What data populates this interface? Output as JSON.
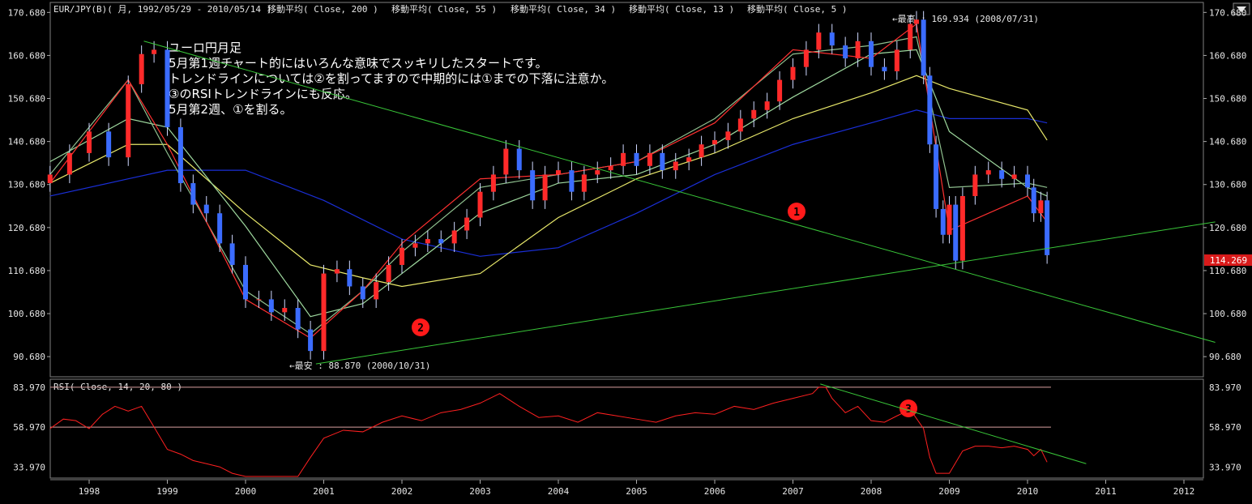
{
  "header": {
    "symbol": "EUR/JPY(B)( 月, 1992/05/29 - 2010/05/14 )",
    "ma_labels": [
      "移動平均( Close, 200 )",
      "移動平均( Close, 55 )",
      "移動平均( Close, 34 )",
      "移動平均( Close, 13 )",
      "移動平均( Close, 5 )"
    ]
  },
  "notes": [
    "ユーロ円月足",
    "5月第1週チャート的にはいろんな意味でスッキリしたスタートです。",
    "トレンドラインについては②を割ってますので中期的には①までの下落に注意か。",
    "③のRSIトレンドラインにも反応。",
    "5月第2週、①を割る。"
  ],
  "annotations": {
    "high": "←最高 : 169.934 (2008/07/31)",
    "low": "←最安 : 88.870 (2000/10/31)",
    "marker_1": "1",
    "marker_2": "2",
    "marker_3": "3",
    "current_price": "114.269"
  },
  "colors": {
    "background": "#000000",
    "up_candle": "#ff2a2a",
    "down_candle": "#3b6cff",
    "ma200": "#1a2fd8",
    "ma55": "#e8e86a",
    "ma34": "#9ed89e",
    "ma13": "#8fc08f",
    "ma5": "#ff3030",
    "trendline": "#39c739",
    "rsi": "#ff2020",
    "rsi_band": "#d9a0a0",
    "marker": "#ff1a1a",
    "price_tag": "#d81a1a"
  },
  "chart_data": [
    {
      "type": "candlestick",
      "title": "EUR/JPY(B)( 月, 1992/05/29 - 2010/05/14 )",
      "x_axis": [
        "1998",
        "1999",
        "2000",
        "2001",
        "2002",
        "2003",
        "2004",
        "2005",
        "2006",
        "2007",
        "2008",
        "2009",
        "2010",
        "2011",
        "2012"
      ],
      "y_ticks": [
        90.68,
        100.68,
        110.68,
        120.68,
        130.68,
        140.68,
        150.68,
        160.68,
        170.68
      ],
      "ylim": [
        86,
        173
      ],
      "y_tick_labels": [
        "90.680",
        "100.680",
        "110.680",
        "120.680",
        "130.680",
        "140.680",
        "150.680",
        "160.680",
        "170.680"
      ],
      "series_close": [
        [
          1997.5,
          133
        ],
        [
          1997.75,
          138
        ],
        [
          1998.0,
          143
        ],
        [
          1998.25,
          137
        ],
        [
          1998.5,
          154
        ],
        [
          1998.67,
          161
        ],
        [
          1998.83,
          162
        ],
        [
          1999.0,
          144
        ],
        [
          1999.17,
          131
        ],
        [
          1999.33,
          126
        ],
        [
          1999.5,
          124
        ],
        [
          1999.67,
          117
        ],
        [
          1999.83,
          112
        ],
        [
          2000.0,
          104
        ],
        [
          2000.17,
          104
        ],
        [
          2000.33,
          101
        ],
        [
          2000.5,
          102
        ],
        [
          2000.67,
          97
        ],
        [
          2000.83,
          92
        ],
        [
          2001.0,
          110
        ],
        [
          2001.17,
          111
        ],
        [
          2001.33,
          107
        ],
        [
          2001.5,
          104
        ],
        [
          2001.67,
          108
        ],
        [
          2001.83,
          112
        ],
        [
          2002.0,
          116
        ],
        [
          2002.17,
          117
        ],
        [
          2002.33,
          118
        ],
        [
          2002.5,
          117
        ],
        [
          2002.67,
          120
        ],
        [
          2002.83,
          123
        ],
        [
          2003.0,
          129
        ],
        [
          2003.17,
          133
        ],
        [
          2003.33,
          139
        ],
        [
          2003.5,
          134
        ],
        [
          2003.67,
          127
        ],
        [
          2003.83,
          133
        ],
        [
          2004.0,
          134
        ],
        [
          2004.17,
          129
        ],
        [
          2004.33,
          133
        ],
        [
          2004.5,
          134
        ],
        [
          2004.67,
          135
        ],
        [
          2004.83,
          138
        ],
        [
          2005.0,
          135
        ],
        [
          2005.17,
          138
        ],
        [
          2005.33,
          134
        ],
        [
          2005.5,
          136
        ],
        [
          2005.67,
          137
        ],
        [
          2005.83,
          140
        ],
        [
          2006.0,
          141
        ],
        [
          2006.17,
          143
        ],
        [
          2006.33,
          146
        ],
        [
          2006.5,
          148
        ],
        [
          2006.67,
          150
        ],
        [
          2006.83,
          155
        ],
        [
          2007.0,
          158
        ],
        [
          2007.17,
          162
        ],
        [
          2007.33,
          166
        ],
        [
          2007.5,
          163
        ],
        [
          2007.67,
          160
        ],
        [
          2007.83,
          164
        ],
        [
          2008.0,
          158
        ],
        [
          2008.17,
          157
        ],
        [
          2008.33,
          162
        ],
        [
          2008.5,
          168
        ],
        [
          2008.58,
          169
        ],
        [
          2008.67,
          156
        ],
        [
          2008.75,
          140
        ],
        [
          2008.83,
          125
        ],
        [
          2008.92,
          119
        ],
        [
          2009.0,
          126
        ],
        [
          2009.08,
          113
        ],
        [
          2009.17,
          128
        ],
        [
          2009.33,
          133
        ],
        [
          2009.5,
          134
        ],
        [
          2009.67,
          132
        ],
        [
          2009.83,
          133
        ],
        [
          2010.0,
          130
        ],
        [
          2010.08,
          124
        ],
        [
          2010.17,
          127
        ],
        [
          2010.25,
          114.269
        ]
      ],
      "moving_averages": [
        {
          "name": "移動平均( Close, 200 )",
          "points": [
            [
              1997.5,
              128
            ],
            [
              1998.5,
              132
            ],
            [
              1999.0,
              134
            ],
            [
              2000.0,
              134
            ],
            [
              2001.0,
              127
            ],
            [
              2002.0,
              118
            ],
            [
              2003.0,
              114
            ],
            [
              2004.0,
              116
            ],
            [
              2005.0,
              124
            ],
            [
              2006.0,
              133
            ],
            [
              2007.0,
              140
            ],
            [
              2008.0,
              145
            ],
            [
              2008.58,
              148
            ],
            [
              2009.0,
              146
            ],
            [
              2010.0,
              146
            ],
            [
              2010.25,
              145
            ]
          ]
        },
        {
          "name": "移動平均( Close, 55 )",
          "points": [
            [
              1997.5,
              131
            ],
            [
              1998.5,
              140
            ],
            [
              1999.0,
              140
            ],
            [
              2000.0,
              124
            ],
            [
              2000.83,
              112
            ],
            [
              2001.5,
              109
            ],
            [
              2002.0,
              107
            ],
            [
              2003.0,
              110
            ],
            [
              2004.0,
              123
            ],
            [
              2005.0,
              132
            ],
            [
              2006.0,
              138
            ],
            [
              2007.0,
              146
            ],
            [
              2008.0,
              152
            ],
            [
              2008.58,
              156
            ],
            [
              2009.0,
              153
            ],
            [
              2010.0,
              148
            ],
            [
              2010.25,
              141
            ]
          ]
        },
        {
          "name": "移動平均( Close, 34 )",
          "points": [
            [
              1997.5,
              136
            ],
            [
              1998.5,
              146
            ],
            [
              1999.0,
              144
            ],
            [
              2000.0,
              121
            ],
            [
              2000.83,
              100
            ],
            [
              2001.5,
              103
            ],
            [
              2002.0,
              110
            ],
            [
              2003.0,
              124
            ],
            [
              2004.0,
              131
            ],
            [
              2005.0,
              133
            ],
            [
              2006.0,
              140
            ],
            [
              2007.0,
              151
            ],
            [
              2008.0,
              161
            ],
            [
              2008.58,
              162
            ],
            [
              2009.0,
              143
            ],
            [
              2010.0,
              130
            ],
            [
              2010.25,
              128
            ]
          ]
        },
        {
          "name": "移動平均( Close, 13 )",
          "points": [
            [
              1997.5,
              133
            ],
            [
              1998.5,
              155
            ],
            [
              1999.0,
              138
            ],
            [
              2000.0,
              106
            ],
            [
              2000.83,
              96
            ],
            [
              2001.5,
              106
            ],
            [
              2002.0,
              115
            ],
            [
              2003.0,
              130
            ],
            [
              2004.0,
              133
            ],
            [
              2005.0,
              136
            ],
            [
              2006.0,
              146
            ],
            [
              2007.0,
              161
            ],
            [
              2008.0,
              163
            ],
            [
              2008.58,
              165
            ],
            [
              2009.0,
              130
            ],
            [
              2010.0,
              131
            ],
            [
              2010.25,
              130
            ]
          ]
        },
        {
          "name": "移動平均( Close, 5 )",
          "points": [
            [
              1997.5,
              131
            ],
            [
              1998.5,
              155
            ],
            [
              1999.0,
              140
            ],
            [
              2000.0,
              104
            ],
            [
              2000.83,
              95
            ],
            [
              2001.5,
              106
            ],
            [
              2002.0,
              117
            ],
            [
              2003.0,
              132
            ],
            [
              2004.0,
              133
            ],
            [
              2005.0,
              136
            ],
            [
              2006.0,
              145
            ],
            [
              2007.0,
              162
            ],
            [
              2008.0,
              160
            ],
            [
              2008.58,
              168
            ],
            [
              2009.0,
              120
            ],
            [
              2010.0,
              128
            ],
            [
              2010.25,
              122
            ]
          ]
        }
      ],
      "trendlines": [
        {
          "marker": "1",
          "from": [
            1998.7,
            164
          ],
          "to": [
            2012.4,
            94
          ]
        },
        {
          "marker": "2",
          "from": [
            2000.9,
            89
          ],
          "to": [
            2012.4,
            122
          ]
        }
      ],
      "high": {
        "x": 2008.58,
        "value": 169.934
      },
      "low": {
        "x": 2000.83,
        "value": 88.87
      }
    },
    {
      "type": "line",
      "title": "RSI( Close, 14, 20, 80 )",
      "y_ticks": [
        33.97,
        58.97,
        83.97
      ],
      "ylim": [
        27,
        89
      ],
      "y_tick_labels": [
        "33.970",
        "58.970",
        "83.970"
      ],
      "bands": [
        58.97,
        83.97
      ],
      "values": [
        [
          1997.5,
          58
        ],
        [
          1997.67,
          64
        ],
        [
          1997.83,
          63
        ],
        [
          1998.0,
          58
        ],
        [
          1998.17,
          67
        ],
        [
          1998.33,
          72
        ],
        [
          1998.5,
          69
        ],
        [
          1998.67,
          72
        ],
        [
          1998.83,
          59
        ],
        [
          1999.0,
          45
        ],
        [
          1999.17,
          42
        ],
        [
          1999.33,
          38
        ],
        [
          1999.5,
          36
        ],
        [
          1999.67,
          34
        ],
        [
          1999.83,
          30
        ],
        [
          2000.0,
          28
        ],
        [
          2000.33,
          28
        ],
        [
          2000.67,
          28
        ],
        [
          2000.83,
          40
        ],
        [
          2001.0,
          52
        ],
        [
          2001.25,
          57
        ],
        [
          2001.5,
          56
        ],
        [
          2001.75,
          62
        ],
        [
          2002.0,
          66
        ],
        [
          2002.25,
          63
        ],
        [
          2002.5,
          68
        ],
        [
          2002.75,
          70
        ],
        [
          2003.0,
          74
        ],
        [
          2003.25,
          80
        ],
        [
          2003.5,
          72
        ],
        [
          2003.75,
          65
        ],
        [
          2004.0,
          66
        ],
        [
          2004.25,
          62
        ],
        [
          2004.5,
          68
        ],
        [
          2004.75,
          66
        ],
        [
          2005.0,
          64
        ],
        [
          2005.25,
          62
        ],
        [
          2005.5,
          66
        ],
        [
          2005.75,
          68
        ],
        [
          2006.0,
          67
        ],
        [
          2006.25,
          72
        ],
        [
          2006.5,
          70
        ],
        [
          2006.75,
          74
        ],
        [
          2007.0,
          77
        ],
        [
          2007.25,
          80
        ],
        [
          2007.33,
          84
        ],
        [
          2007.42,
          84
        ],
        [
          2007.5,
          77
        ],
        [
          2007.67,
          68
        ],
        [
          2007.83,
          72
        ],
        [
          2008.0,
          63
        ],
        [
          2008.17,
          62
        ],
        [
          2008.33,
          66
        ],
        [
          2008.5,
          70
        ],
        [
          2008.67,
          58
        ],
        [
          2008.75,
          40
        ],
        [
          2008.83,
          30
        ],
        [
          2009.0,
          30
        ],
        [
          2009.17,
          44
        ],
        [
          2009.33,
          47
        ],
        [
          2009.5,
          47
        ],
        [
          2009.67,
          46
        ],
        [
          2009.83,
          47
        ],
        [
          2010.0,
          45
        ],
        [
          2010.08,
          41
        ],
        [
          2010.17,
          45
        ],
        [
          2010.25,
          37
        ]
      ],
      "trendline": {
        "marker": "3",
        "from": [
          2007.35,
          86
        ],
        "to": [
          2010.75,
          36
        ]
      }
    }
  ]
}
